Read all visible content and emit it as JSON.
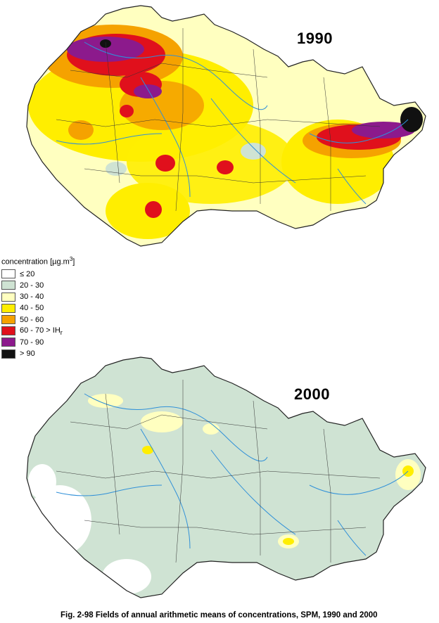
{
  "maps": [
    {
      "year": "1990",
      "base_color": "#ffffc0"
    },
    {
      "year": "2000",
      "base_color": "#cfe3d3"
    }
  ],
  "legend": {
    "title_prefix": "concentration [µg.m",
    "title_sup": "3",
    "title_suffix": "]",
    "classes": [
      {
        "label": "≤ 20",
        "color": "#ffffff"
      },
      {
        "label": "20 - 30",
        "color": "#cfe3d3"
      },
      {
        "label": "30 - 40",
        "color": "#ffffc0"
      },
      {
        "label": "40 - 50",
        "color": "#ffee00"
      },
      {
        "label": "50 - 60",
        "color": "#f5a200"
      },
      {
        "label": "60 - 70 > IH",
        "sub": "r",
        "color": "#e0101c"
      },
      {
        "label": "70 - 90",
        "color": "#8c1a8c"
      },
      {
        "label": "> 90",
        "color": "#111111"
      }
    ]
  },
  "caption": "Fig. 2-98  Fields of annual arithmetic means of concentrations, SPM, 1990 and 2000"
}
